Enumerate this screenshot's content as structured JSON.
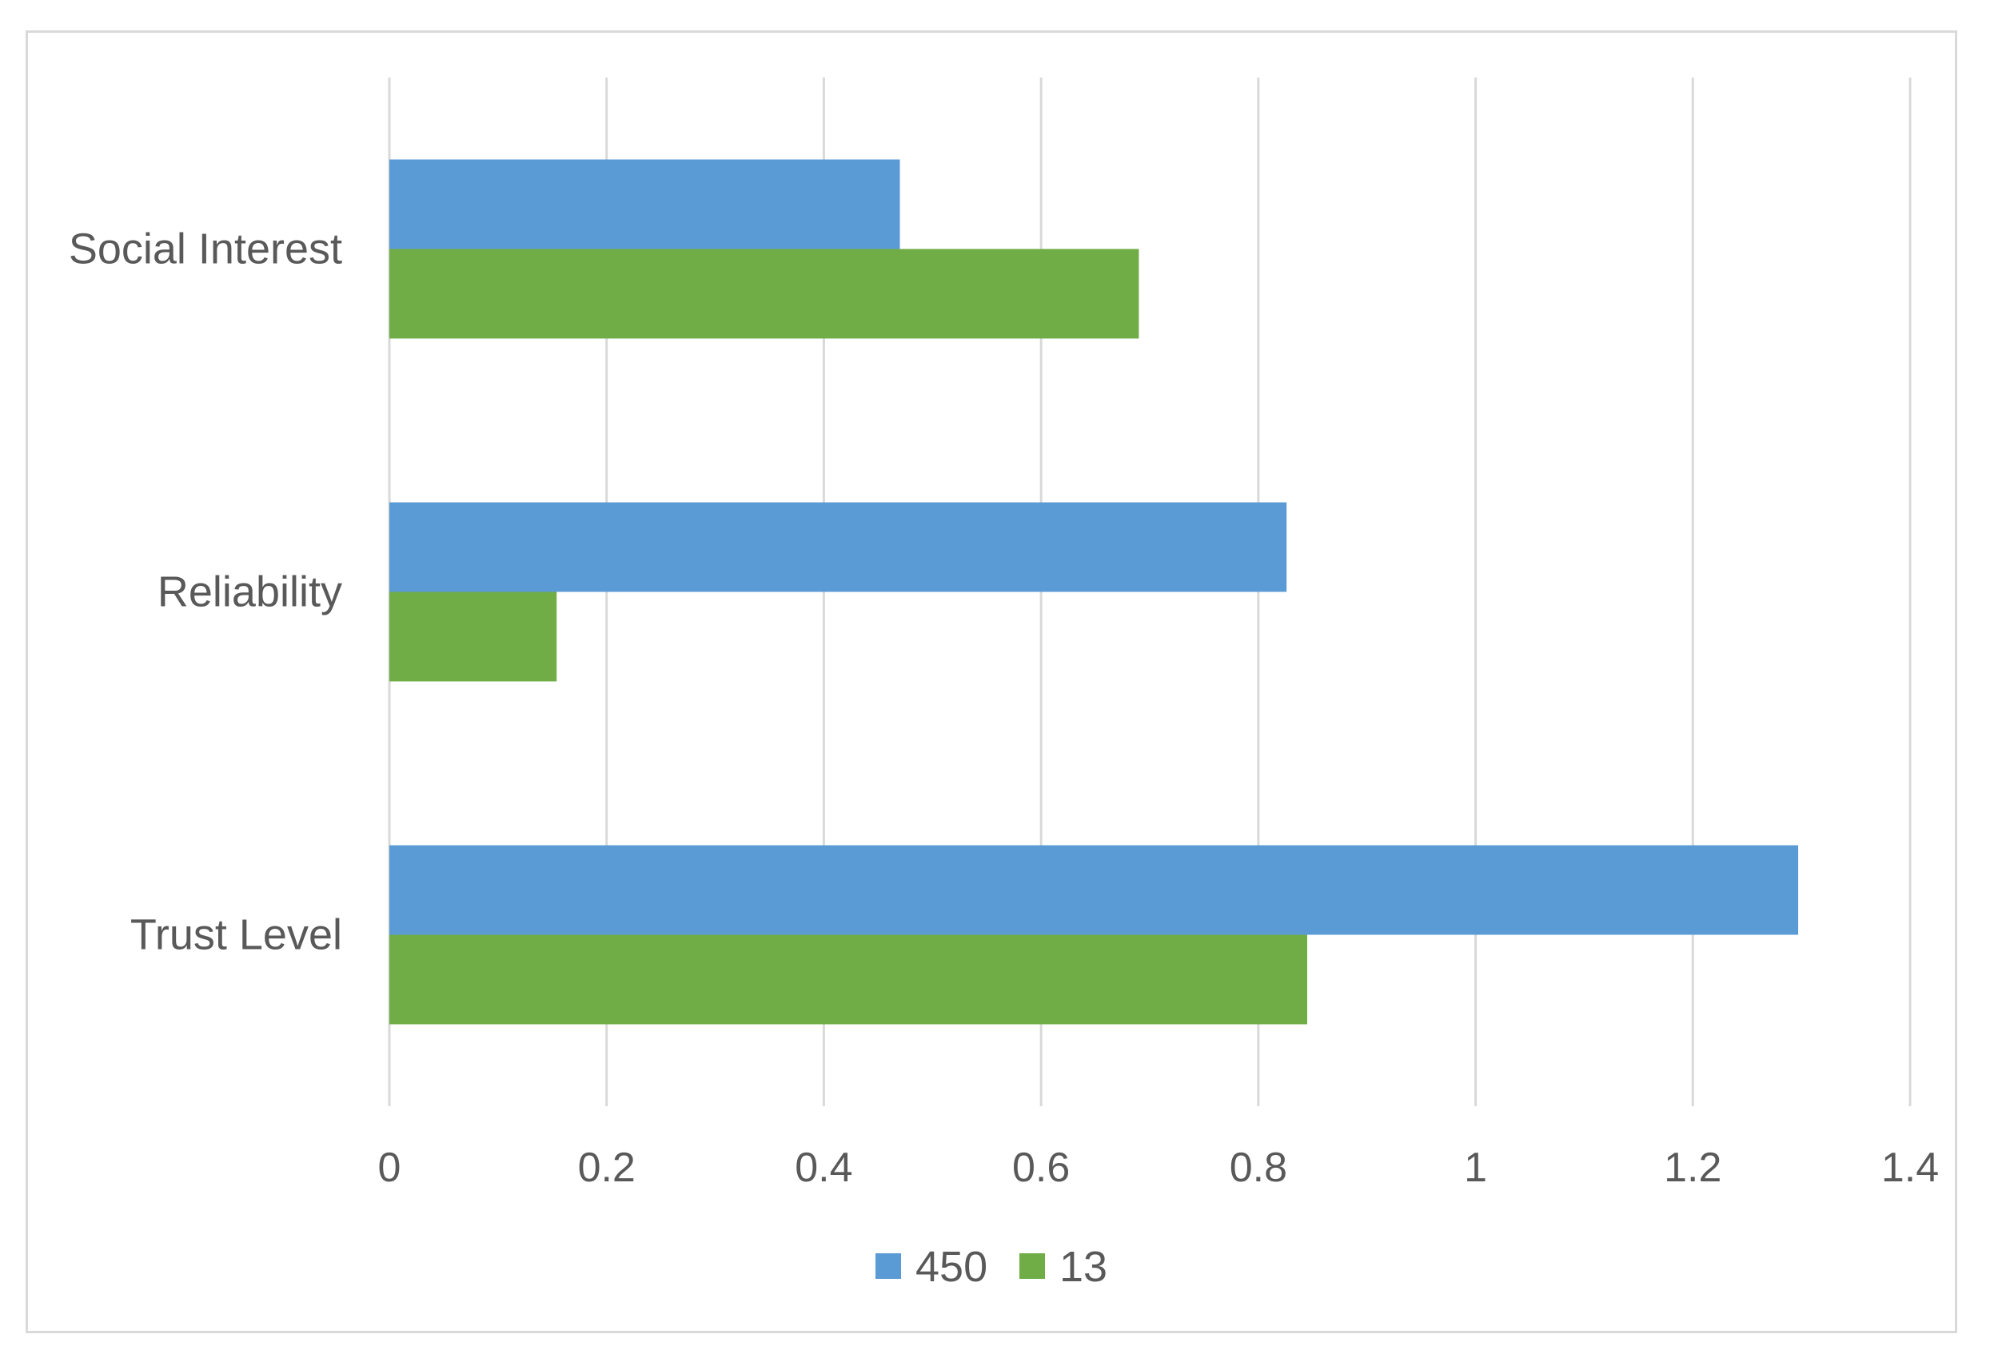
{
  "chart_data": {
    "type": "bar",
    "orientation": "horizontal",
    "categories": [
      "Trust Level",
      "Reliability",
      "Social Interest"
    ],
    "series": [
      {
        "name": "450",
        "color": "#5b9bd5",
        "values": [
          1.297,
          0.826,
          0.47
        ]
      },
      {
        "name": "13",
        "color": "#70ad47",
        "values": [
          0.845,
          0.154,
          0.69
        ]
      }
    ],
    "xlim": [
      0,
      1.4
    ],
    "xticks": [
      "0",
      "0.2",
      "0.4",
      "0.6",
      "0.8",
      "1",
      "1.2",
      "1.4"
    ],
    "xtick_values": [
      0,
      0.2,
      0.4,
      0.6,
      0.8,
      1,
      1.2,
      1.4
    ],
    "grid": "vertical",
    "legend": "bottom-center",
    "title": "",
    "xlabel": "",
    "ylabel": ""
  }
}
